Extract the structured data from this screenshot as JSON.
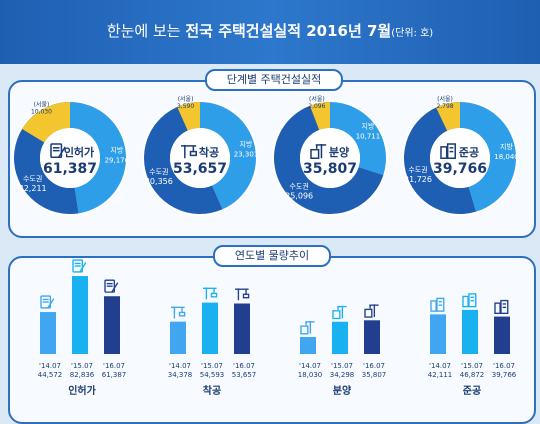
{
  "title": {
    "prefix": "한눈에 보는",
    "main": "전국 주택건설실적 2016년 7월",
    "unit": "(단위: 호)"
  },
  "sections": {
    "stage": "단계별 주택건설실적",
    "yearly": "연도별 물량추이"
  },
  "colors": {
    "capital": "#1e5fb4",
    "local": "#2f9ee8",
    "seoul": "#f3c52f",
    "bar_2014": "#3fa6ef",
    "bar_2015": "#19b1f0",
    "bar_2016": "#223f8f"
  },
  "chart_data": [
    {
      "type": "pie",
      "title": "인허가",
      "icon": "document-pen-icon",
      "total": "61,387",
      "slices": [
        {
          "label": "수도권",
          "value": 32211,
          "text": "32,211"
        },
        {
          "label": "지방",
          "value": 29176,
          "text": "29,176"
        }
      ],
      "seoul": {
        "label": "(서울)",
        "value": 10030,
        "text": "10,030"
      }
    },
    {
      "type": "pie",
      "title": "착공",
      "icon": "crane-icon",
      "total": "53,657",
      "slices": [
        {
          "label": "수도권",
          "value": 30356,
          "text": "30,356"
        },
        {
          "label": "지방",
          "value": 23301,
          "text": "23,301"
        }
      ],
      "seoul": {
        "label": "(서울)",
        "value": 3590,
        "text": "3,590"
      }
    },
    {
      "type": "pie",
      "title": "분양",
      "icon": "building-crane-icon",
      "total": "35,807",
      "slices": [
        {
          "label": "수도권",
          "value": 25096,
          "text": "25,096"
        },
        {
          "label": "지방",
          "value": 10711,
          "text": "10,711"
        }
      ],
      "seoul": {
        "label": "(서울)",
        "value": 2096,
        "text": "2,096"
      }
    },
    {
      "type": "pie",
      "title": "준공",
      "icon": "buildings-icon",
      "total": "39,766",
      "slices": [
        {
          "label": "수도권",
          "value": 21726,
          "text": "21,726"
        },
        {
          "label": "지방",
          "value": 18040,
          "text": "18,040"
        }
      ],
      "seoul": {
        "label": "(서울)",
        "value": 2798,
        "text": "2,798"
      }
    },
    {
      "type": "bar",
      "groups": [
        {
          "name": "인허가",
          "icon": "document-pen-icon",
          "bars": [
            {
              "x": "'14.07",
              "value": 44572,
              "text": "44,572"
            },
            {
              "x": "'15.07",
              "value": 82836,
              "text": "82,836"
            },
            {
              "x": "'16.07",
              "value": 61387,
              "text": "61,387"
            }
          ]
        },
        {
          "name": "착공",
          "icon": "crane-icon",
          "bars": [
            {
              "x": "'14.07",
              "value": 34378,
              "text": "34,378"
            },
            {
              "x": "'15.07",
              "value": 54593,
              "text": "54,593"
            },
            {
              "x": "'16.07",
              "value": 53657,
              "text": "53,657"
            }
          ]
        },
        {
          "name": "분양",
          "icon": "building-crane-icon",
          "bars": [
            {
              "x": "'14.07",
              "value": 18030,
              "text": "18,030"
            },
            {
              "x": "'15.07",
              "value": 34298,
              "text": "34,298"
            },
            {
              "x": "'16.07",
              "value": 35807,
              "text": "35,807"
            }
          ]
        },
        {
          "name": "준공",
          "icon": "buildings-icon",
          "bars": [
            {
              "x": "'14.07",
              "value": 42111,
              "text": "42,111"
            },
            {
              "x": "'15.07",
              "value": 46872,
              "text": "46,872"
            },
            {
              "x": "'16.07",
              "value": 39766,
              "text": "39,766"
            }
          ]
        }
      ]
    }
  ]
}
